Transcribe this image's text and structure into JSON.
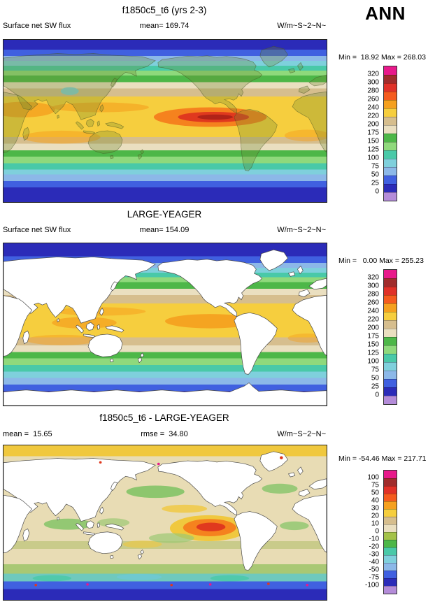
{
  "page": {
    "background": "#FFFFFF"
  },
  "season_label": "ANN",
  "panels": [
    {
      "title": "f1850c5_t6 (yrs 2-3)",
      "left_label": "Surface net SW flux",
      "center_label": "mean= 169.74",
      "units_label": "W/m~S~2~N~",
      "minmax_label": "Min =  18.92 Max = 268.03",
      "colorbar": {
        "labels": [
          "320",
          "300",
          "280",
          "260",
          "240",
          "220",
          "200",
          "175",
          "150",
          "125",
          "100",
          "75",
          "50",
          "25",
          "0"
        ],
        "colors": [
          "#E8198B",
          "#A02C2C",
          "#E03128",
          "#F55B1E",
          "#F5A01E",
          "#F6CE3E",
          "#D6BE8E",
          "#EADFC0",
          "#4DB748",
          "#8FD97C",
          "#49C9A8",
          "#7FD0DC",
          "#8CB8E8",
          "#4060E0",
          "#2B2BB8",
          "#B48CD9"
        ]
      }
    },
    {
      "title": "LARGE-YEAGER",
      "left_label": "Surface net SW flux",
      "center_label": "mean= 154.09",
      "units_label": "W/m~S~2~N~",
      "minmax_label": "Min =   0.00 Max = 255.23",
      "colorbar": {
        "labels": [
          "320",
          "300",
          "280",
          "260",
          "240",
          "220",
          "200",
          "175",
          "150",
          "125",
          "100",
          "75",
          "50",
          "25",
          "0"
        ],
        "colors": [
          "#E8198B",
          "#A02C2C",
          "#E03128",
          "#F55B1E",
          "#F5A01E",
          "#F6CE3E",
          "#D6BE8E",
          "#EADFC0",
          "#4DB748",
          "#8FD97C",
          "#49C9A8",
          "#7FD0DC",
          "#8CB8E8",
          "#4060E0",
          "#2B2BB8",
          "#B48CD9"
        ]
      }
    },
    {
      "title": "f1850c5_t6 - LARGE-YEAGER",
      "left_label": "mean =  15.65",
      "center_label": "rmse =  34.80",
      "units_label": "W/m~S~2~N~",
      "minmax_label": "Min = -54.46 Max = 217.71",
      "colorbar": {
        "labels": [
          "100",
          "75",
          "50",
          "40",
          "30",
          "20",
          "10",
          "0",
          "-10",
          "-20",
          "-30",
          "-40",
          "-50",
          "-75",
          "-100"
        ],
        "colors": [
          "#E8198B",
          "#A02C2C",
          "#E03128",
          "#F55B1E",
          "#F5A01E",
          "#F6CE3E",
          "#D6BE8E",
          "#EADFC0",
          "#A4C248",
          "#4DB748",
          "#49C9A8",
          "#7FD0DC",
          "#8CB8E8",
          "#4060E0",
          "#2B2BB8",
          "#B48CD9"
        ]
      }
    }
  ],
  "chart_data": [
    {
      "type": "heatmap",
      "subtype": "global lat-lon filled-contour map",
      "title": "f1850c5_t6 (yrs 2-3)",
      "variable": "Surface net SW flux",
      "units": "W/m~S~2~N~",
      "season": "ANN",
      "mean": 169.74,
      "min": 18.92,
      "max": 268.03,
      "contour_levels": [
        0,
        25,
        50,
        75,
        100,
        125,
        150,
        175,
        200,
        220,
        240,
        260,
        280,
        300,
        320
      ],
      "palette_top_to_bottom": [
        "#E8198B",
        "#A02C2C",
        "#E03128",
        "#F55B1E",
        "#F5A01E",
        "#F6CE3E",
        "#D6BE8E",
        "#EADFC0",
        "#4DB748",
        "#8FD97C",
        "#49C9A8",
        "#7FD0DC",
        "#8CB8E8",
        "#4060E0",
        "#2B2BB8",
        "#B48CD9"
      ],
      "legend_position": "right"
    },
    {
      "type": "heatmap",
      "subtype": "global lat-lon filled-contour map (ocean only, land masked white)",
      "title": "LARGE-YEAGER",
      "variable": "Surface net SW flux",
      "units": "W/m~S~2~N~",
      "mean": 154.09,
      "min": 0.0,
      "max": 255.23,
      "contour_levels": [
        0,
        25,
        50,
        75,
        100,
        125,
        150,
        175,
        200,
        220,
        240,
        260,
        280,
        300,
        320
      ],
      "palette_top_to_bottom": [
        "#E8198B",
        "#A02C2C",
        "#E03128",
        "#F55B1E",
        "#F5A01E",
        "#F6CE3E",
        "#D6BE8E",
        "#EADFC0",
        "#4DB748",
        "#8FD97C",
        "#49C9A8",
        "#7FD0DC",
        "#8CB8E8",
        "#4060E0",
        "#2B2BB8",
        "#B48CD9"
      ],
      "legend_position": "right"
    },
    {
      "type": "heatmap",
      "subtype": "global lat-lon filled-contour difference map (land masked white)",
      "title": "f1850c5_t6 - LARGE-YEAGER",
      "variable": "Surface net SW flux difference",
      "units": "W/m~S~2~N~",
      "mean": 15.65,
      "rmse": 34.8,
      "min": -54.46,
      "max": 217.71,
      "contour_levels": [
        -100,
        -75,
        -50,
        -40,
        -30,
        -20,
        -10,
        0,
        10,
        20,
        30,
        40,
        50,
        75,
        100
      ],
      "palette_top_to_bottom": [
        "#E8198B",
        "#A02C2C",
        "#E03128",
        "#F55B1E",
        "#F5A01E",
        "#F6CE3E",
        "#D6BE8E",
        "#EADFC0",
        "#A4C248",
        "#4DB748",
        "#49C9A8",
        "#7FD0DC",
        "#8CB8E8",
        "#4060E0",
        "#2B2BB8",
        "#B48CD9"
      ],
      "legend_position": "right"
    }
  ]
}
